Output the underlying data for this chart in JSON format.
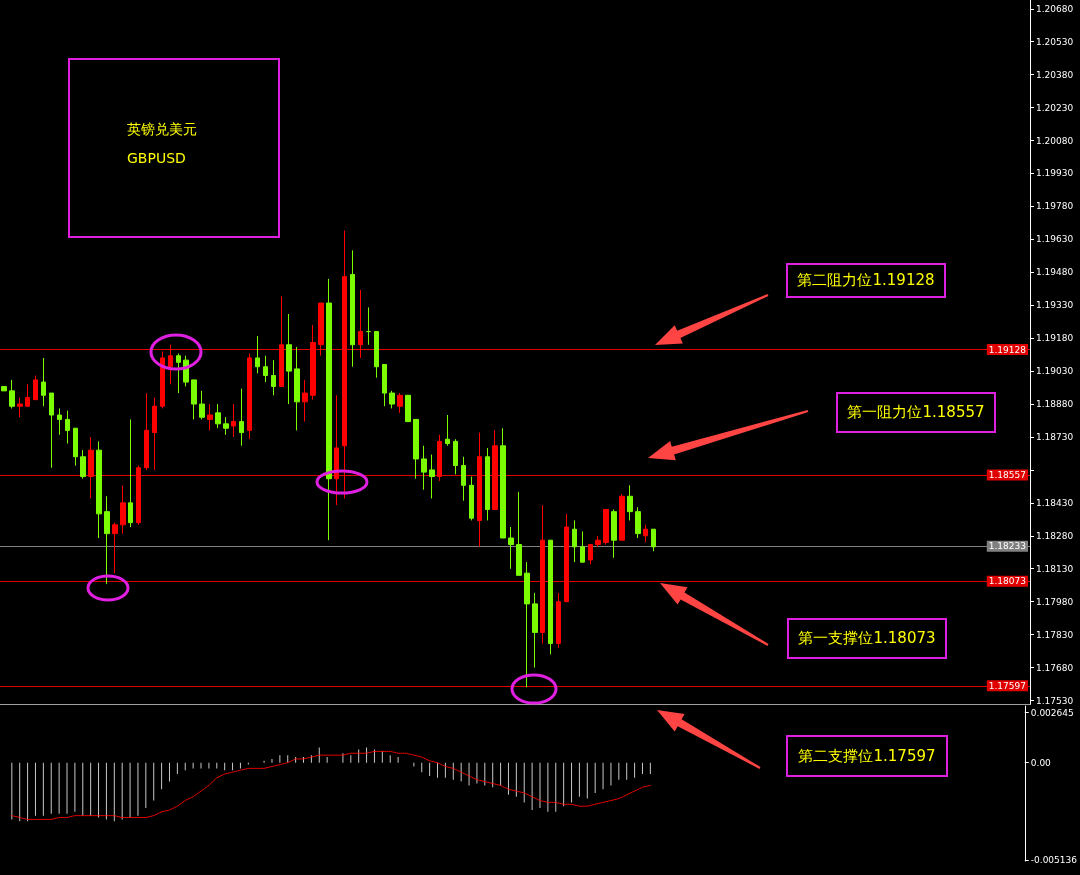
{
  "chart_data": [
    {
      "type": "candlestick",
      "categories": [
        null,
        null,
        null,
        null,
        null,
        null,
        null,
        null,
        null,
        null,
        null,
        null,
        null,
        null,
        null,
        null,
        null,
        null,
        null,
        null,
        null,
        null,
        null,
        null,
        null,
        null,
        null,
        null,
        null,
        null,
        null,
        null,
        null,
        null,
        null,
        null,
        null,
        null,
        null,
        null,
        null,
        null,
        null,
        null,
        null,
        null,
        null,
        null,
        null,
        null,
        null,
        null,
        null,
        null,
        null,
        null,
        null,
        null,
        null,
        null,
        null,
        null,
        null,
        null,
        null,
        null,
        null,
        null,
        null,
        null,
        null,
        null,
        null,
        null,
        null,
        null,
        null,
        null,
        null,
        null,
        null,
        null,
        null,
        null,
        null,
        null,
        null,
        null,
        null,
        null,
        null,
        null,
        null,
        null,
        null,
        null,
        null,
        null,
        null,
        null,
        null,
        null,
        null,
        null,
        null,
        null,
        null,
        null,
        null,
        null,
        null,
        null,
        null,
        null,
        null,
        null,
        null,
        null,
        null,
        null,
        null,
        null,
        null,
        null,
        null,
        null,
        null,
        null,
        null,
        null
      ],
      "ohlc": [
        [
          1.1896,
          1.1896,
          1.1894,
          1.1894
        ],
        [
          1.1894,
          1.1899,
          1.1886,
          1.1887
        ],
        [
          1.1887,
          1.1891,
          1.1882,
          1.1888
        ],
        [
          1.1887,
          1.1897,
          1.1887,
          1.1891
        ],
        [
          1.189,
          1.1901,
          1.189,
          1.1899
        ],
        [
          1.1898,
          1.1909,
          1.1887,
          1.1892
        ],
        [
          1.1893,
          1.1893,
          1.1859,
          1.1883
        ],
        [
          1.1883,
          1.1886,
          1.1874,
          1.1881
        ],
        [
          1.1881,
          1.1885,
          1.187,
          1.1876
        ],
        [
          1.1877,
          1.1877,
          1.186,
          1.1864
        ],
        [
          1.1864,
          1.1867,
          1.1854,
          1.1855
        ],
        [
          1.1855,
          1.1873,
          1.1845,
          1.1867
        ],
        [
          1.1867,
          1.1871,
          1.1827,
          1.1838
        ],
        [
          1.1839,
          1.1846,
          1.1806,
          1.1829
        ],
        [
          1.1829,
          1.1834,
          1.1811,
          1.1833
        ],
        [
          1.1833,
          1.1851,
          1.1829,
          1.1843
        ],
        [
          1.1843,
          1.1881,
          1.1832,
          1.1834
        ],
        [
          1.1834,
          1.186,
          1.1833,
          1.1859
        ],
        [
          1.1859,
          1.1893,
          1.1858,
          1.1876
        ],
        [
          1.1875,
          1.1891,
          1.1858,
          1.1887
        ],
        [
          1.1887,
          1.1912,
          1.1886,
          1.1909
        ],
        [
          1.1905,
          1.1915,
          1.1897,
          1.191
        ],
        [
          1.191,
          1.1911,
          1.1893,
          1.1907
        ],
        [
          1.1908,
          1.191,
          1.1896,
          1.1898
        ],
        [
          1.1899,
          1.1899,
          1.1881,
          1.1888
        ],
        [
          1.1888,
          1.1894,
          1.1881,
          1.1882
        ],
        [
          1.1881,
          1.1888,
          1.1876,
          1.1883
        ],
        [
          1.1884,
          1.1888,
          1.1877,
          1.1879
        ],
        [
          1.1879,
          1.1882,
          1.1874,
          1.1877
        ],
        [
          1.1878,
          1.1888,
          1.1873,
          1.188
        ],
        [
          1.188,
          1.1895,
          1.1869,
          1.1875
        ],
        [
          1.1876,
          1.1911,
          1.1872,
          1.1909
        ],
        [
          1.1909,
          1.1919,
          1.1902,
          1.1905
        ],
        [
          1.1905,
          1.191,
          1.1898,
          1.1901
        ],
        [
          1.1901,
          1.1908,
          1.1892,
          1.1896
        ],
        [
          1.1896,
          1.1937,
          1.1896,
          1.1915
        ],
        [
          1.1915,
          1.1929,
          1.1888,
          1.1903
        ],
        [
          1.1904,
          1.1914,
          1.1876,
          1.1889
        ],
        [
          1.1889,
          1.1899,
          1.188,
          1.1893
        ],
        [
          1.1892,
          1.1924,
          1.189,
          1.1916
        ],
        [
          1.1915,
          1.1934,
          1.191,
          1.1934
        ],
        [
          1.1934,
          1.1945,
          1.1826,
          1.1854
        ],
        [
          1.1854,
          1.1892,
          1.1842,
          1.1868
        ],
        [
          1.1869,
          1.1967,
          1.1845,
          1.1946
        ],
        [
          1.1947,
          1.1958,
          1.1905,
          1.1915
        ],
        [
          1.1915,
          1.194,
          1.1909,
          1.1921
        ],
        [
          1.1921,
          1.1932,
          1.1915,
          1.1921
        ],
        [
          1.1921,
          1.1921,
          1.19,
          1.1905
        ],
        [
          1.1906,
          1.1906,
          1.1887,
          1.1893
        ],
        [
          1.1893,
          1.1894,
          1.1886,
          1.1888
        ],
        [
          1.1887,
          1.1893,
          1.1884,
          1.1892
        ],
        [
          1.1892,
          1.1892,
          1.188,
          1.188
        ],
        [
          1.1881,
          1.1881,
          1.1854,
          1.1863
        ],
        [
          1.1863,
          1.1869,
          1.1849,
          1.1857
        ],
        [
          1.1858,
          1.1865,
          1.1845,
          1.1855
        ],
        [
          1.1855,
          1.1874,
          1.1853,
          1.1871
        ],
        [
          1.1872,
          1.1883,
          1.1869,
          1.187
        ],
        [
          1.1871,
          1.1872,
          1.1856,
          1.186
        ],
        [
          1.186,
          1.1864,
          1.1844,
          1.1851
        ],
        [
          1.1851,
          1.1855,
          1.1835,
          1.1836
        ],
        [
          1.1835,
          1.1875,
          1.1823,
          1.1864
        ],
        [
          1.1864,
          1.1868,
          1.1835,
          1.184
        ],
        [
          1.184,
          1.1876,
          1.184,
          1.1869
        ],
        [
          1.1869,
          1.1877,
          1.1827,
          1.1827
        ],
        [
          1.1827,
          1.1832,
          1.1813,
          1.1824
        ],
        [
          1.1824,
          1.1848,
          1.181,
          1.181
        ],
        [
          1.1811,
          1.1816,
          1.1759,
          1.1797
        ],
        [
          1.1797,
          1.1802,
          1.1768,
          1.1784
        ],
        [
          1.1784,
          1.1842,
          1.1779,
          1.1826
        ],
        [
          1.1826,
          1.1826,
          1.1774,
          1.1779
        ],
        [
          1.1779,
          1.1802,
          1.1777,
          1.1798
        ],
        [
          1.1798,
          1.1838,
          1.1798,
          1.1832
        ],
        [
          1.1831,
          1.1835,
          1.1816,
          1.1823
        ],
        [
          1.1823,
          1.183,
          1.1816,
          1.1816
        ],
        [
          1.1817,
          1.1824,
          1.1815,
          1.1824
        ],
        [
          1.1824,
          1.1828,
          1.1823,
          1.1826
        ],
        [
          1.1825,
          1.184,
          1.1824,
          1.184
        ],
        [
          1.1839,
          1.184,
          1.1818,
          1.1826
        ],
        [
          1.1826,
          1.1847,
          1.1826,
          1.1846
        ],
        [
          1.1846,
          1.1851,
          1.1835,
          1.1839
        ],
        [
          1.1839,
          1.1841,
          1.1827,
          1.1829
        ],
        [
          1.1828,
          1.1833,
          1.1825,
          1.1831
        ],
        [
          1.1831,
          1.1831,
          1.1821,
          1.1823
        ],
        null,
        null,
        null,
        null,
        null,
        null,
        null,
        null,
        null,
        null,
        null,
        null,
        null,
        null,
        null,
        null,
        null,
        null,
        null,
        null,
        null,
        null,
        null,
        null,
        null,
        null,
        null,
        null,
        null,
        null,
        null,
        null,
        null,
        null,
        null,
        null,
        null,
        null,
        null,
        null,
        null,
        null,
        null,
        null,
        null,
        null,
        null
      ],
      "colors": [
        "#7cfc00",
        "#7cfc00",
        "#ff0000",
        "#ff0000",
        "#ff0000",
        "#7cfc00",
        "#7cfc00",
        "#7cfc00",
        "#7cfc00",
        "#7cfc00",
        "#7cfc00",
        "#ff0000",
        "#7cfc00",
        "#7cfc00",
        "#ff0000",
        "#ff0000",
        "#7cfc00",
        "#ff0000",
        "#ff0000",
        "#ff0000",
        "#ff0000",
        "#ff0000",
        "#7cfc00",
        "#7cfc00",
        "#7cfc00",
        "#7cfc00",
        "#ff0000",
        "#7cfc00",
        "#7cfc00",
        "#ff0000",
        "#7cfc00",
        "#ff0000",
        "#7cfc00",
        "#7cfc00",
        "#7cfc00",
        "#ff0000",
        "#7cfc00",
        "#7cfc00",
        "#ff0000",
        "#ff0000",
        "#ff0000",
        "#7cfc00",
        "#ff0000",
        "#ff0000",
        "#7cfc00",
        "#ff0000",
        "#7cfc00",
        "#7cfc00",
        "#7cfc00",
        "#7cfc00",
        "#ff0000",
        "#7cfc00",
        "#7cfc00",
        "#7cfc00",
        "#7cfc00",
        "#ff0000",
        "#7cfc00",
        "#7cfc00",
        "#7cfc00",
        "#7cfc00",
        "#ff0000",
        "#7cfc00",
        "#ff0000",
        "#7cfc00",
        "#7cfc00",
        "#7cfc00",
        "#7cfc00",
        "#7cfc00",
        "#ff0000",
        "#7cfc00",
        "#ff0000",
        "#ff0000",
        "#7cfc00",
        "#7cfc00",
        "#ff0000",
        "#ff0000",
        "#ff0000",
        "#7cfc00",
        "#ff0000",
        "#7cfc00",
        "#7cfc00",
        "#ff0000",
        "#7cfc00",
        null,
        null,
        null,
        null,
        null,
        null,
        null,
        null,
        null,
        null,
        null,
        null,
        null,
        null,
        null,
        null,
        null,
        null,
        null,
        null,
        null,
        null,
        null,
        null,
        null,
        null,
        null,
        null,
        null,
        null,
        null,
        null,
        null,
        null,
        null,
        null,
        null,
        null,
        null,
        null,
        null,
        null,
        null,
        null,
        null,
        null,
        null
      ],
      "ylim": [
        1.1751,
        1.2072
      ],
      "yticks": [
        {
          "value": 1.2068,
          "label": "1.20680"
        },
        {
          "value": 1.2053,
          "label": "1.20530"
        },
        {
          "value": 1.2038,
          "label": "1.20380"
        },
        {
          "value": 1.2023,
          "label": "1.20230"
        },
        {
          "value": 1.2008,
          "label": "1.20080"
        },
        {
          "value": 1.1993,
          "label": "1.19930"
        },
        {
          "value": 1.1978,
          "label": "1.19780"
        },
        {
          "value": 1.1963,
          "label": "1.19630"
        },
        {
          "value": 1.1948,
          "label": "1.19480"
        },
        {
          "value": 1.1933,
          "label": "1.19330"
        },
        {
          "value": 1.1918,
          "label": "1.19180"
        },
        {
          "value": 1.1903,
          "label": "1.19030"
        },
        {
          "value": 1.1888,
          "label": "1.18880"
        },
        {
          "value": 1.1873,
          "label": "1.18730"
        },
        {
          "value": 1.1858,
          "label": null
        },
        {
          "value": 1.1843,
          "label": "1.18430"
        },
        {
          "value": 1.1828,
          "label": "1.18280"
        },
        {
          "value": 1.1813,
          "label": "1.18130"
        },
        {
          "value": 1.1798,
          "label": "1.17980"
        },
        {
          "value": 1.1783,
          "label": "1.17830"
        },
        {
          "value": 1.1768,
          "label": "1.17680"
        },
        {
          "value": 1.1753,
          "label": "1.17530"
        }
      ],
      "tick_labels": "y",
      "ref_lines": [
        {
          "axis": "y",
          "value": 1.19128,
          "label": "1.19128",
          "color": "#e00000"
        },
        {
          "axis": "y",
          "value": 1.18557,
          "label": "1.18557",
          "color": "#e00000"
        },
        {
          "axis": "y",
          "value": 1.18233,
          "label": "1.18233",
          "color": "#808080"
        },
        {
          "axis": "y",
          "value": 1.18073,
          "label": "1.18073",
          "color": "#e00000"
        },
        {
          "axis": "y",
          "value": 1.17597,
          "label": "1.17597",
          "color": "#e00000"
        }
      ],
      "annotations": [
        "英镑兑美元",
        "GBPUSD",
        "第二阻力位1.19128",
        "第一阻力位1.18557",
        "第一支撑位1.18073",
        "第二支撑位1.17597"
      ]
    },
    {
      "type": "bar",
      "categories": [
        null,
        null,
        null,
        null,
        null,
        null,
        null,
        null,
        null,
        null,
        null,
        null,
        null,
        null,
        null,
        null,
        null,
        null,
        null,
        null,
        null,
        null,
        null,
        null,
        null,
        null,
        null,
        null,
        null,
        null,
        null,
        null,
        null,
        null,
        null,
        null,
        null,
        null,
        null,
        null,
        null,
        null,
        null,
        null,
        null,
        null,
        null,
        null,
        null,
        null,
        null,
        null,
        null,
        null,
        null,
        null,
        null,
        null,
        null,
        null,
        null,
        null,
        null,
        null,
        null,
        null,
        null,
        null,
        null,
        null,
        null,
        null,
        null,
        null,
        null,
        null,
        null,
        null,
        null,
        null,
        null,
        null,
        null,
        null,
        null,
        null,
        null,
        null,
        null,
        null,
        null,
        null,
        null,
        null,
        null,
        null,
        null,
        null,
        null,
        null,
        null,
        null,
        null,
        null,
        null,
        null,
        null,
        null,
        null,
        null,
        null,
        null,
        null,
        null,
        null,
        null,
        null,
        null,
        null,
        null,
        null,
        null,
        null,
        null,
        null,
        null,
        null,
        null,
        null,
        null
      ],
      "series": [
        {
          "color": "#c8c8c8",
          "values": [
            null,
            -0.003,
            -0.0031,
            -0.0031,
            -0.0028,
            -0.0028,
            -0.0027,
            -0.0027,
            -0.0027,
            -0.0026,
            -0.0028,
            -0.0028,
            -0.0029,
            -0.003,
            -0.0031,
            -0.003,
            -0.0029,
            -0.0028,
            -0.0024,
            -0.002,
            -0.0014,
            -0.001,
            -0.0006,
            -0.0004,
            -0.0003,
            -0.0003,
            -0.0003,
            -0.0003,
            -0.0004,
            -0.0004,
            -0.0003,
            -0.0001,
            0,
            0.0001,
            0.0002,
            0.0004,
            0.0004,
            0.0003,
            0.0003,
            0.0004,
            0.0008,
            0.0003,
            0,
            0.0005,
            0.0004,
            0.0007,
            0.0008,
            0.0007,
            0.0006,
            0.0004,
            0.0003,
            0,
            -0.0002,
            -0.0005,
            -0.0007,
            -0.0008,
            -0.0008,
            -0.0009,
            -0.001,
            -0.0012,
            -0.0011,
            -0.0012,
            -0.0013,
            -0.0012,
            -0.0017,
            -0.0018,
            -0.0021,
            -0.0025,
            -0.0024,
            -0.0026,
            -0.0026,
            -0.0023,
            -0.0021,
            -0.0018,
            -0.0019,
            -0.0016,
            -0.0014,
            -0.0012,
            -0.0009,
            -0.0009,
            -0.0008,
            -0.0006,
            -0.0006,
            null,
            null,
            null,
            null,
            null,
            null,
            null,
            null,
            null,
            null,
            null,
            null,
            null,
            null,
            null,
            null,
            null,
            null,
            null,
            null,
            null,
            null,
            null,
            null,
            null,
            null,
            null,
            null,
            null,
            null,
            null,
            null,
            null,
            null,
            null,
            null,
            null,
            null,
            null,
            null,
            null,
            null,
            null,
            null,
            null,
            null,
            null
          ]
        },
        {
          "type": "line",
          "color": "#ff0000",
          "line_style": "dotted",
          "values": [
            null,
            -0.0028,
            -0.0029,
            -0.003,
            -0.003,
            -0.003,
            -0.003,
            -0.0029,
            -0.0029,
            -0.0028,
            -0.0028,
            -0.0028,
            -0.0028,
            -0.0028,
            -0.0028,
            -0.0029,
            -0.0029,
            -0.0029,
            -0.0029,
            -0.0028,
            -0.0026,
            -0.0025,
            -0.0023,
            -0.002,
            -0.0018,
            -0.0015,
            -0.0012,
            -0.0008,
            -0.0006,
            -0.0005,
            -0.0004,
            -0.0003,
            -0.0003,
            -0.0003,
            -0.0002,
            -0.0001,
            0,
            0.0002,
            0.0002,
            0.0003,
            0.0004,
            0.0004,
            0.0004,
            0.0004,
            0.0005,
            0.0005,
            0.0005,
            0.0006,
            0.0006,
            0.0006,
            0.0005,
            0.0005,
            0.0004,
            0.0003,
            0.0001,
            0,
            -0.0002,
            -0.0003,
            -0.0005,
            -0.0007,
            -0.0009,
            -0.001,
            -0.0011,
            -0.0012,
            -0.0014,
            -0.0015,
            -0.0016,
            -0.0018,
            -0.002,
            -0.0021,
            -0.0021,
            -0.0022,
            -0.0022,
            -0.0023,
            -0.0023,
            -0.0022,
            -0.0021,
            -0.002,
            -0.0019,
            -0.0017,
            -0.0015,
            -0.0013,
            -0.0012,
            null,
            null,
            null,
            null,
            null,
            null,
            null,
            null,
            null,
            null,
            null,
            null,
            null,
            null,
            null,
            null,
            null,
            null,
            null,
            null,
            null,
            null,
            null,
            null,
            null,
            null,
            null,
            null,
            null,
            null,
            null,
            null,
            null,
            null,
            null,
            null,
            null,
            null,
            null,
            null,
            null,
            null,
            null,
            null,
            null,
            null,
            null
          ]
        }
      ],
      "marker": "none",
      "ylim": [
        -0.0052,
        0.003
      ],
      "yticks": [
        0.002645,
        {
          "value": 0,
          "label": "0.00"
        },
        -0.005136
      ],
      "tick_labels": "y"
    }
  ]
}
